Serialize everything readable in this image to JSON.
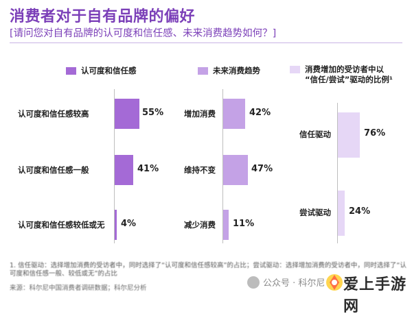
{
  "title": "消费者对于自有品牌的偏好",
  "subtitle": "[请问您对自有品牌的认可度和信任感、未来消费趋势如何？]",
  "colors": {
    "title": "#7b3fb8",
    "panel1": "#a46ad6",
    "panel2": "#c4a2e6",
    "panel3": "#e6d7f6"
  },
  "chart_data": [
    {
      "type": "bar",
      "legend": "认可度和信任感",
      "categories": [
        "认可度和信任感较高",
        "认可度和信任感一般",
        "认可度和信任感较低或无"
      ],
      "values": [
        55,
        41,
        4
      ],
      "value_labels": [
        "55%",
        "41%",
        "4%"
      ],
      "unit": "%"
    },
    {
      "type": "bar",
      "legend": "未来消费趋势",
      "categories": [
        "增加消费",
        "维持不变",
        "减少消费"
      ],
      "values": [
        42,
        47,
        11
      ],
      "value_labels": [
        "42%",
        "47%",
        "11%"
      ],
      "unit": "%"
    },
    {
      "type": "bar",
      "legend": "消费增加的受访者中以\n“信任/尝试”驱动的比例¹",
      "categories": [
        "信任驱动",
        "尝试驱动"
      ],
      "values": [
        76,
        24
      ],
      "value_labels": [
        "76%",
        "24%"
      ],
      "unit": "%"
    }
  ],
  "footnote": "1.  信任驱动：选择增加消费的受访者中，同时选择了“认可度和信任感较高”的占比；尝试驱动：选择增加消费的受访者中，同时选择了“认可度和信任感一般、较低或无”的占比",
  "source": "来源：科尔尼中国消费者调研数据；科尔尼分析",
  "watermark": {
    "social": "公众号 · 科尔尼",
    "site": "爱上手游网",
    "icon": "watermark-logo-icon"
  }
}
